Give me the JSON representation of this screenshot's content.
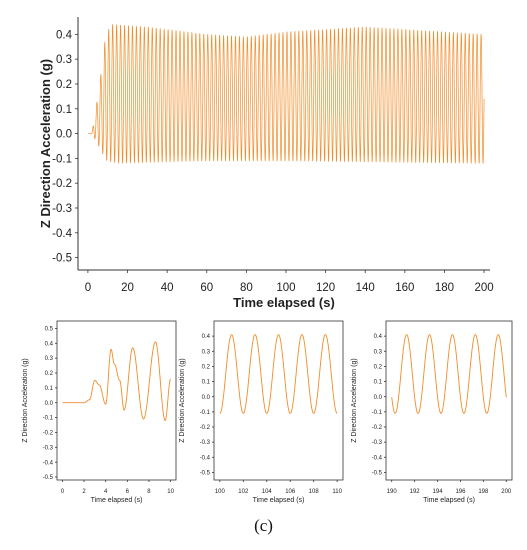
{
  "figure_caption": "(c)",
  "colors": {
    "series": "#f28c28",
    "axis": "#333333",
    "text": "#222222"
  },
  "chart_data": [
    {
      "type": "line",
      "ylabel": "Z Direction Acceleration (g)",
      "xlabel": "Time elapsed (s)",
      "xlim": [
        -5,
        203
      ],
      "ylim": [
        -0.55,
        0.47
      ],
      "xticks": [
        "0",
        "20",
        "40",
        "60",
        "80",
        "100",
        "120",
        "140",
        "160",
        "180",
        "200"
      ],
      "yticks": [
        "0.4",
        "0.3",
        "0.2",
        "0.1",
        "0.0",
        "-0.1",
        "-0.2",
        "-0.3",
        "-0.4",
        "-0.5"
      ],
      "signal": {
        "description": "oscillation ~0.5 Hz after start-up near t=2-5 s",
        "start_time": 2,
        "rise_time": 5,
        "end_time": 200,
        "frequency_hz": 0.5,
        "baseline": 0.0,
        "max_envelope": [
          [
            5,
            0.35
          ],
          [
            12,
            0.44
          ],
          [
            30,
            0.43
          ],
          [
            60,
            0.4
          ],
          [
            80,
            0.39
          ],
          [
            100,
            0.41
          ],
          [
            140,
            0.43
          ],
          [
            200,
            0.4
          ]
        ],
        "min_envelope": [
          [
            5,
            -0.1
          ],
          [
            15,
            -0.12
          ],
          [
            60,
            -0.11
          ],
          [
            100,
            -0.11
          ],
          [
            200,
            -0.12
          ]
        ]
      }
    },
    {
      "type": "line",
      "ylabel": "Z Direction Acceleration (g)",
      "xlabel": "Time elapsed (s)",
      "xlim": [
        -0.5,
        10.5
      ],
      "ylim": [
        -0.52,
        0.55
      ],
      "xticks": [
        "0",
        "2",
        "4",
        "6",
        "8",
        "10"
      ],
      "yticks": [
        "0.5",
        "0.4",
        "0.3",
        "0.2",
        "0.1",
        "0.0",
        "-0.1",
        "-0.2",
        "-0.3",
        "-0.4",
        "-0.5"
      ],
      "points": [
        [
          0,
          0
        ],
        [
          2,
          0
        ],
        [
          2.5,
          0.02
        ],
        [
          3.0,
          0.15
        ],
        [
          3.4,
          0.12
        ],
        [
          4.0,
          -0.01
        ],
        [
          4.5,
          0.36
        ],
        [
          4.8,
          0.26
        ],
        [
          5.3,
          0.15
        ],
        [
          5.7,
          -0.05
        ],
        [
          6.5,
          0.37
        ],
        [
          7.5,
          -0.11
        ],
        [
          8.6,
          0.41
        ],
        [
          9.5,
          -0.12
        ],
        [
          10,
          0.16
        ]
      ]
    },
    {
      "type": "line",
      "ylabel": "Z Direction Acceleration (g)",
      "xlabel": "Time elapsed (s)",
      "xlim": [
        99.5,
        110.5
      ],
      "ylim": [
        -0.55,
        0.5
      ],
      "xticks": [
        "100",
        "102",
        "104",
        "106",
        "108",
        "110"
      ],
      "yticks": [
        "0.4",
        "0.3",
        "0.2",
        "0.1",
        "0.0",
        "-0.1",
        "-0.2",
        "-0.3",
        "-0.4",
        "-0.5"
      ],
      "sine": {
        "t0": 100,
        "t1": 110,
        "mid": 0.15,
        "amp": 0.26,
        "period": 2.0,
        "peak_at": 101.0
      }
    },
    {
      "type": "line",
      "ylabel": "Z Direction Acceleration (g)",
      "xlabel": "Time elapsed (s)",
      "xlim": [
        189.5,
        200.5
      ],
      "ylim": [
        -0.55,
        0.5
      ],
      "xticks": [
        "190",
        "192",
        "194",
        "196",
        "198",
        "200"
      ],
      "yticks": [
        "0.4",
        "0.3",
        "0.2",
        "0.1",
        "0.0",
        "-0.1",
        "-0.2",
        "-0.3",
        "-0.4",
        "-0.5"
      ],
      "sine": {
        "t0": 190,
        "t1": 200,
        "mid": 0.15,
        "amp": 0.26,
        "period": 2.0,
        "peak_at": 191.3
      }
    }
  ]
}
